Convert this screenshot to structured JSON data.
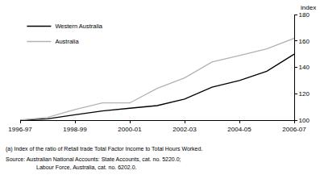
{
  "chart_data": {
    "type": "line",
    "y_label": "index",
    "categories": [
      "1996-97",
      null,
      "1998-99",
      null,
      "2000-01",
      null,
      "2002-03",
      null,
      "2004-05",
      null,
      "2006-07"
    ],
    "series": [
      {
        "name": "Western Australia",
        "color": "#000000",
        "values": [
          100,
          101,
          104,
          107,
          109,
          111,
          116,
          125,
          130,
          137,
          150
        ]
      },
      {
        "name": "Australia",
        "color": "#b3b3b3",
        "values": [
          100,
          102,
          108,
          113,
          113,
          124,
          132,
          144,
          149,
          154,
          162
        ]
      }
    ],
    "ylim": [
      100,
      180
    ],
    "yticks": [
      100,
      120,
      140,
      160,
      180
    ],
    "grid": false,
    "legend": "top-left",
    "annotations": [
      "(a) Index of the ratio of Retail trade Total Factor Income to Total Hours Worked.",
      "Source: Australian National Accounts: State Accounts, cat. no. 5220.0;",
      "Labour Force, Australia, cat. no. 6202.0."
    ]
  }
}
